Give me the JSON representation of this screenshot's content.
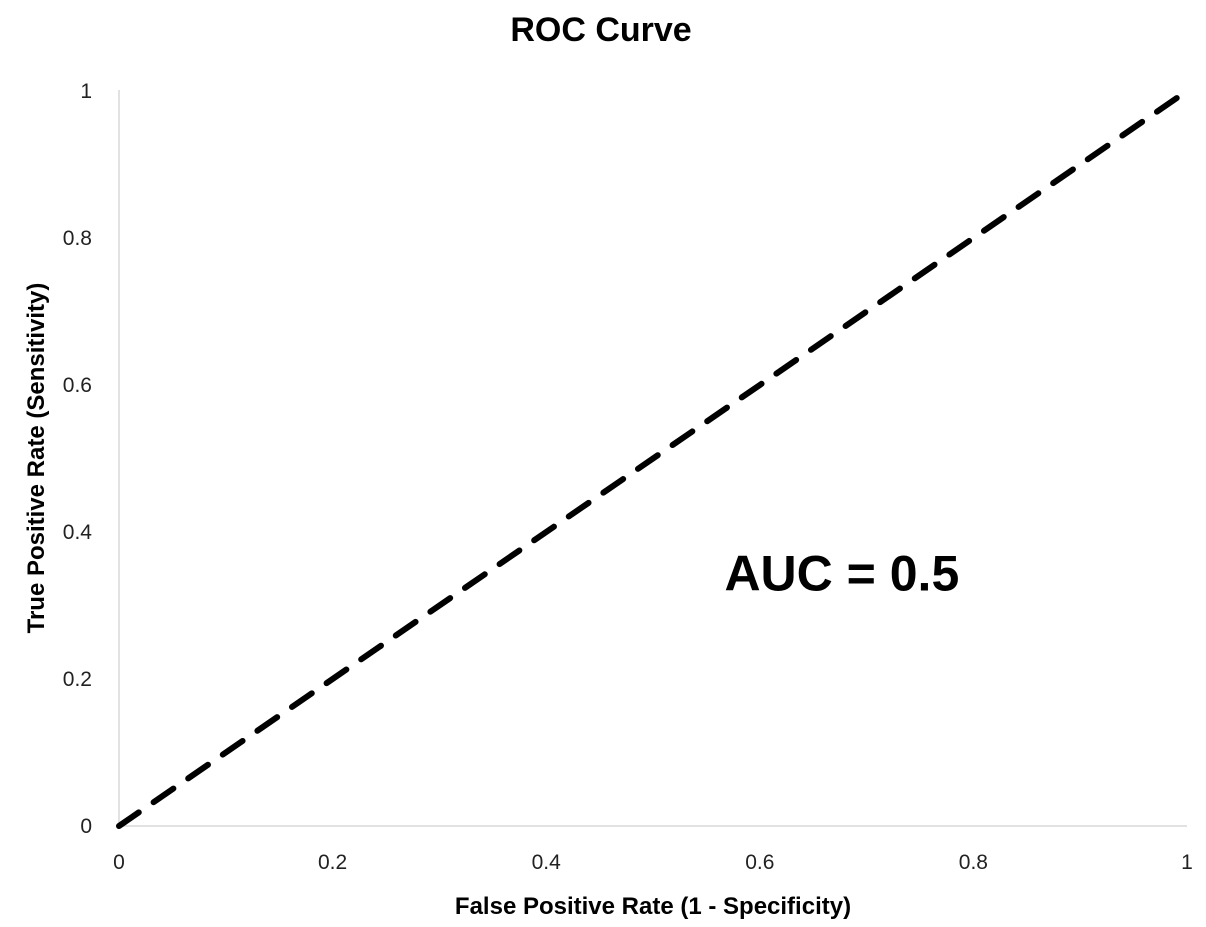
{
  "chart_data": {
    "type": "line",
    "title": "ROC Curve",
    "xlabel": "False Positive Rate (1 - Specificity)",
    "ylabel": "True Positive Rate (Sensitivity)",
    "xlim": [
      0,
      1
    ],
    "ylim": [
      0,
      1
    ],
    "x_ticks": [
      "0",
      "0.2",
      "0.4",
      "0.6",
      "0.8",
      "1"
    ],
    "y_ticks": [
      "0",
      "0.2",
      "0.4",
      "0.6",
      "0.8",
      "1"
    ],
    "grid": false,
    "legend": "none",
    "series": [
      {
        "x": [
          0,
          1
        ],
        "y": [
          0,
          1
        ],
        "line_style": "dashed",
        "color": "#000000"
      }
    ],
    "annotations": [
      {
        "text": "AUC = 0.5",
        "x": 0.58,
        "y": 0.33
      }
    ]
  }
}
